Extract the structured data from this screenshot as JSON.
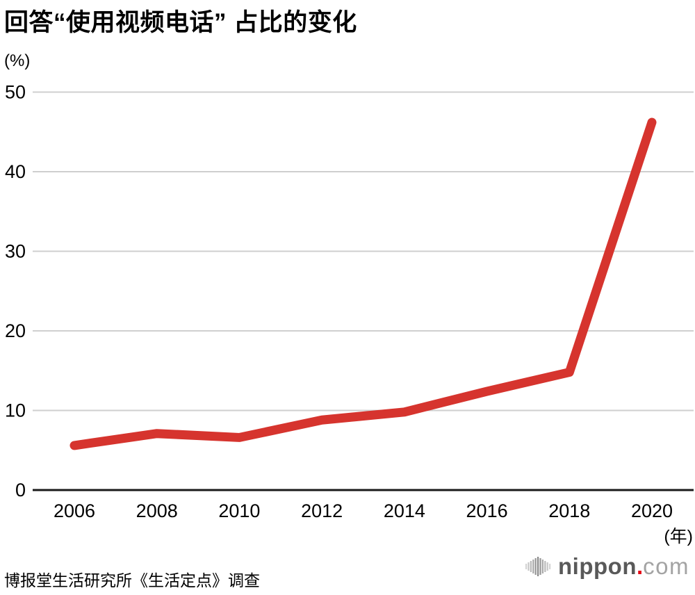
{
  "chart": {
    "title": "回答“使用视频电话” 占比的变化",
    "y_unit_label": "(%)",
    "x_unit_label": "(年)",
    "source": "博报堂生活研究所《生活定点》调查"
  },
  "logo": {
    "brand": "nippon",
    "dot": ".",
    "tld": "com",
    "dot_color": "#e60012"
  },
  "chart_data": {
    "type": "line",
    "title": "回答“使用视频电话” 占比的变化",
    "categories": [
      "2006",
      "2008",
      "2010",
      "2012",
      "2014",
      "2016",
      "2018",
      "2020"
    ],
    "values": [
      5.6,
      7.1,
      6.6,
      8.8,
      9.8,
      12.4,
      14.8,
      46.2
    ],
    "xlabel": "(年)",
    "ylabel": "(%)",
    "ylim": [
      0,
      50
    ],
    "yticks": [
      0,
      10,
      20,
      30,
      40,
      50
    ],
    "line_color": "#d6342e",
    "grid_color": "#cfcfcf",
    "axis_color": "#1a1a1a",
    "grid": true,
    "legend": false
  }
}
